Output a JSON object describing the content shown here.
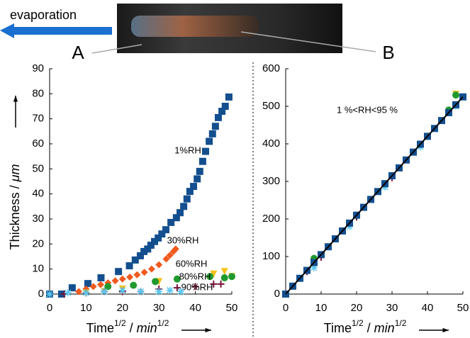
{
  "header": {
    "evaporation_label": "evaporation",
    "panel_a": "A",
    "panel_b": "B"
  },
  "chart_data": [
    {
      "type": "scatter",
      "xlim": [
        0,
        50
      ],
      "ylim": [
        0,
        90
      ],
      "xticks": [
        0,
        10,
        20,
        30,
        40,
        50
      ],
      "yticks": [
        0,
        10,
        20,
        30,
        40,
        50,
        60,
        70,
        80,
        90
      ],
      "xlabel_parts": [
        "Time",
        "1/2",
        " / ",
        "min",
        "1/2"
      ],
      "ylabel_parts": [
        "Thickness / ",
        "μm"
      ],
      "series": [
        {
          "name": "1%RH",
          "color": "#134f8f",
          "marker": "square",
          "x": [
            0,
            3.3,
            6.2,
            10.5,
            14.1,
            18.9,
            21.9,
            23.5,
            24.9,
            25.9,
            26.9,
            27.8,
            28.8,
            29.8,
            30.8,
            31.9,
            33.3,
            34.8,
            35.8,
            36.8,
            37.7,
            38.5,
            39.5,
            40.5,
            41.2,
            42,
            42.8,
            43.8,
            44.7,
            45.5,
            46.3,
            47.3,
            48.2,
            49.2
          ],
          "values": [
            0,
            0,
            2.5,
            4.2,
            6.5,
            9,
            11.3,
            13.6,
            15.3,
            17,
            18,
            19.5,
            21,
            22.4,
            24,
            25.7,
            28.6,
            30.5,
            32.5,
            35,
            38,
            41,
            43,
            46,
            49,
            53,
            57,
            61,
            64,
            67,
            70.5,
            73,
            75,
            78.7
          ]
        },
        {
          "name": "30%RH",
          "color": "#f05a1e",
          "marker": "diamond",
          "x": [
            8,
            10,
            12,
            14,
            16,
            18,
            20,
            22,
            24,
            26,
            28,
            30,
            32,
            33,
            34,
            34.6
          ],
          "values": [
            1,
            2,
            3,
            3.8,
            4.5,
            5.3,
            6,
            6.8,
            7.7,
            8.7,
            10,
            11.7,
            14,
            15.5,
            17,
            18
          ]
        },
        {
          "name": "60%RH",
          "color": "#f5c21b",
          "marker": "triangle-down",
          "x": [
            10,
            15,
            20,
            30,
            45,
            48,
            50
          ],
          "values": [
            0.5,
            1,
            2,
            5,
            8,
            9,
            7
          ]
        },
        {
          "name": "80%RH",
          "color": "#1f9a2e",
          "marker": "circle",
          "x": [
            16,
            23,
            29,
            35,
            44,
            48,
            50
          ],
          "values": [
            3,
            3.5,
            5,
            6,
            7,
            6.5,
            7
          ]
        },
        {
          "name": "90%RH",
          "color": "#7a1238",
          "marker": "plus",
          "x": [
            4,
            10,
            15,
            20,
            25,
            30,
            35,
            40,
            45,
            47
          ],
          "values": [
            0,
            0.5,
            1,
            1,
            1,
            2,
            2.5,
            3,
            4,
            4
          ]
        },
        {
          "color": "#5bc8f0",
          "marker": "asterisk",
          "x": [
            0,
            5,
            10,
            15,
            20,
            25,
            30,
            33,
            36
          ],
          "values": [
            0,
            0.5,
            0.5,
            1,
            1.5,
            1,
            1,
            1.5,
            1
          ]
        }
      ]
    },
    {
      "type": "scatter",
      "xlim": [
        0,
        50
      ],
      "ylim": [
        0,
        600
      ],
      "xticks": [
        0,
        10,
        20,
        30,
        40,
        50
      ],
      "yticks": [
        0,
        100,
        200,
        300,
        400,
        500,
        600
      ],
      "xlabel_parts": [
        "Time",
        "1/2",
        " / ",
        "min",
        "1/2"
      ],
      "annotation": "1 %<RH<95 %",
      "series": [
        {
          "color": "#f5c21b",
          "marker": "triangle-down",
          "x": [
            10,
            20,
            30,
            40,
            48
          ],
          "values": [
            100,
            205,
            312,
            420,
            532
          ]
        },
        {
          "color": "#1f9a2e",
          "marker": "circle",
          "x": [
            8,
            20,
            30,
            46,
            48
          ],
          "values": [
            95,
            210,
            315,
            490,
            530
          ]
        },
        {
          "color": "#7a1238",
          "marker": "plus",
          "x": [
            6,
            10,
            20,
            30
          ],
          "values": [
            60,
            98,
            205,
            310
          ]
        },
        {
          "color": "#5bc8f0",
          "marker": "asterisk",
          "x": [
            8,
            18,
            28,
            38,
            48
          ],
          "values": [
            70,
            180,
            285,
            392,
            500
          ]
        },
        {
          "color": "#134f8f",
          "marker": "square",
          "x": [
            0,
            2,
            4,
            6,
            8,
            10,
            12,
            14,
            16,
            18,
            20,
            22,
            24,
            26,
            28,
            30,
            32,
            34,
            36,
            38,
            40,
            42,
            44,
            46,
            48,
            50
          ],
          "values": [
            0,
            21,
            42,
            63,
            84,
            105,
            126,
            147,
            168,
            189,
            210,
            231,
            252,
            273,
            294,
            315,
            336,
            357,
            378,
            399,
            420,
            441,
            462,
            483,
            504,
            525
          ]
        },
        {
          "color": "#000000",
          "marker": "line",
          "x": [
            0,
            50
          ],
          "values": [
            0,
            525
          ]
        }
      ]
    }
  ]
}
